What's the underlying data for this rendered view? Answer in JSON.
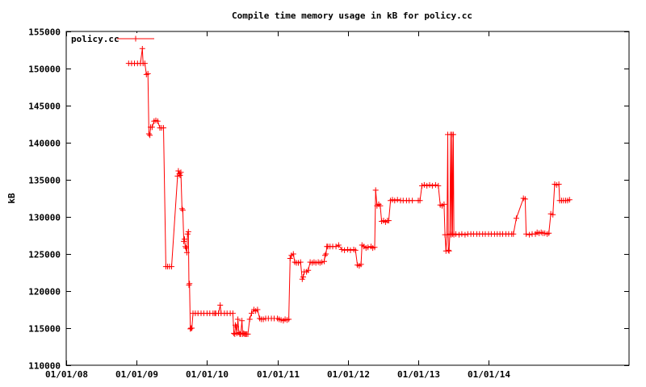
{
  "chart_data": {
    "type": "line",
    "title": "Compile time memory usage in kB for policy.cc",
    "xlabel": "",
    "ylabel": "kB",
    "x_is_date": true,
    "xlim": [
      "2008-01-01",
      "2015-12-31"
    ],
    "ylim": [
      110000,
      155000
    ],
    "yticks": [
      110000,
      115000,
      120000,
      125000,
      130000,
      135000,
      140000,
      145000,
      150000,
      155000
    ],
    "xticks": [
      {
        "date": "2008-01-01",
        "label": "01/01/08"
      },
      {
        "date": "2009-01-01",
        "label": "01/01/09"
      },
      {
        "date": "2010-01-01",
        "label": "01/01/10"
      },
      {
        "date": "2011-01-01",
        "label": "01/01/11"
      },
      {
        "date": "2012-01-01",
        "label": "01/01/12"
      },
      {
        "date": "2013-01-01",
        "label": "01/01/13"
      },
      {
        "date": "2014-01-01",
        "label": "01/01/14"
      }
    ],
    "grid": false,
    "legend_position": "top-left",
    "series": [
      {
        "name": "policy.cc",
        "color": "#ff0000",
        "marker": "plus",
        "points": [
          [
            "2008-11-20",
            150700
          ],
          [
            "2008-12-05",
            150700
          ],
          [
            "2008-12-20",
            150700
          ],
          [
            "2009-01-05",
            150700
          ],
          [
            "2009-01-20",
            150700
          ],
          [
            "2009-01-30",
            152700
          ],
          [
            "2009-02-03",
            150700
          ],
          [
            "2009-02-12",
            150700
          ],
          [
            "2009-02-20",
            149200
          ],
          [
            "2009-02-28",
            149300
          ],
          [
            "2009-03-05",
            141200
          ],
          [
            "2009-03-10",
            141000
          ],
          [
            "2009-03-14",
            142100
          ],
          [
            "2009-03-22",
            142100
          ],
          [
            "2009-04-01",
            142900
          ],
          [
            "2009-04-10",
            143000
          ],
          [
            "2009-04-20",
            142900
          ],
          [
            "2009-05-01",
            142000
          ],
          [
            "2009-05-10",
            142000
          ],
          [
            "2009-05-20",
            142000
          ],
          [
            "2009-06-01",
            123300
          ],
          [
            "2009-06-10",
            123300
          ],
          [
            "2009-06-20",
            123300
          ],
          [
            "2009-07-01",
            123300
          ],
          [
            "2009-08-01",
            135500
          ],
          [
            "2009-08-05",
            136200
          ],
          [
            "2009-08-10",
            135800
          ],
          [
            "2009-08-14",
            135600
          ],
          [
            "2009-08-18",
            136000
          ],
          [
            "2009-08-24",
            131100
          ],
          [
            "2009-08-28",
            130900
          ],
          [
            "2009-09-02",
            126700
          ],
          [
            "2009-09-06",
            127000
          ],
          [
            "2009-09-10",
            126000
          ],
          [
            "2009-09-14",
            125800
          ],
          [
            "2009-09-18",
            125200
          ],
          [
            "2009-09-22",
            127700
          ],
          [
            "2009-09-26",
            128000
          ],
          [
            "2009-09-29",
            120800
          ],
          [
            "2009-10-02",
            121000
          ],
          [
            "2009-10-06",
            114900
          ],
          [
            "2009-10-10",
            115000
          ],
          [
            "2009-10-14",
            115000
          ],
          [
            "2009-10-20",
            117000
          ],
          [
            "2009-11-01",
            117000
          ],
          [
            "2009-11-15",
            117000
          ],
          [
            "2009-12-01",
            117000
          ],
          [
            "2009-12-15",
            117000
          ],
          [
            "2010-01-01",
            117000
          ],
          [
            "2010-01-15",
            117000
          ],
          [
            "2010-02-01",
            117000
          ],
          [
            "2010-02-10",
            117000
          ],
          [
            "2010-02-15",
            117000
          ],
          [
            "2010-03-01",
            117000
          ],
          [
            "2010-03-10",
            118100
          ],
          [
            "2010-03-15",
            117000
          ],
          [
            "2010-04-01",
            117000
          ],
          [
            "2010-04-15",
            117000
          ],
          [
            "2010-05-01",
            117000
          ],
          [
            "2010-05-15",
            117000
          ],
          [
            "2010-05-20",
            114300
          ],
          [
            "2010-05-25",
            114200
          ],
          [
            "2010-05-28",
            115400
          ],
          [
            "2010-06-01",
            115200
          ],
          [
            "2010-06-05",
            114300
          ],
          [
            "2010-06-10",
            116200
          ],
          [
            "2010-06-15",
            114400
          ],
          [
            "2010-06-20",
            114200
          ],
          [
            "2010-06-25",
            114200
          ],
          [
            "2010-07-01",
            116000
          ],
          [
            "2010-07-05",
            114200
          ],
          [
            "2010-07-10",
            114300
          ],
          [
            "2010-07-15",
            114200
          ],
          [
            "2010-07-20",
            114200
          ],
          [
            "2010-07-25",
            114200
          ],
          [
            "2010-08-01",
            114200
          ],
          [
            "2010-08-10",
            116200
          ],
          [
            "2010-08-20",
            117000
          ],
          [
            "2010-09-01",
            117500
          ],
          [
            "2010-09-10",
            117300
          ],
          [
            "2010-09-20",
            117500
          ],
          [
            "2010-10-01",
            116300
          ],
          [
            "2010-10-10",
            116200
          ],
          [
            "2010-10-20",
            116200
          ],
          [
            "2010-11-01",
            116300
          ],
          [
            "2010-11-15",
            116300
          ],
          [
            "2010-12-01",
            116300
          ],
          [
            "2010-12-15",
            116300
          ],
          [
            "2011-01-01",
            116300
          ],
          [
            "2011-01-10",
            116200
          ],
          [
            "2011-01-20",
            116100
          ],
          [
            "2011-02-01",
            116000
          ],
          [
            "2011-02-10",
            116200
          ],
          [
            "2011-02-20",
            116100
          ],
          [
            "2011-03-01",
            116200
          ],
          [
            "2011-03-08",
            124400
          ],
          [
            "2011-03-15",
            124800
          ],
          [
            "2011-03-25",
            125000
          ],
          [
            "2011-04-01",
            123900
          ],
          [
            "2011-04-10",
            123800
          ],
          [
            "2011-04-20",
            123800
          ],
          [
            "2011-05-01",
            123900
          ],
          [
            "2011-05-10",
            121600
          ],
          [
            "2011-05-15",
            121900
          ],
          [
            "2011-05-20",
            122600
          ],
          [
            "2011-06-01",
            122600
          ],
          [
            "2011-06-10",
            122800
          ],
          [
            "2011-06-20",
            123900
          ],
          [
            "2011-07-01",
            123800
          ],
          [
            "2011-07-10",
            123900
          ],
          [
            "2011-07-20",
            123800
          ],
          [
            "2011-08-01",
            123900
          ],
          [
            "2011-08-10",
            123800
          ],
          [
            "2011-08-20",
            123900
          ],
          [
            "2011-09-01",
            124000
          ],
          [
            "2011-09-05",
            124800
          ],
          [
            "2011-09-10",
            125000
          ],
          [
            "2011-09-15",
            126000
          ],
          [
            "2011-09-20",
            126000
          ],
          [
            "2011-10-01",
            126000
          ],
          [
            "2011-10-15",
            126000
          ],
          [
            "2011-11-01",
            126000
          ],
          [
            "2011-11-15",
            126200
          ],
          [
            "2011-12-01",
            125600
          ],
          [
            "2011-12-15",
            125500
          ],
          [
            "2012-01-01",
            125600
          ],
          [
            "2012-01-15",
            125500
          ],
          [
            "2012-02-01",
            125600
          ],
          [
            "2012-02-10",
            125500
          ],
          [
            "2012-02-20",
            123500
          ],
          [
            "2012-03-01",
            123400
          ],
          [
            "2012-03-10",
            123600
          ],
          [
            "2012-03-15",
            126200
          ],
          [
            "2012-03-25",
            126000
          ],
          [
            "2012-04-05",
            125800
          ],
          [
            "2012-04-15",
            125900
          ],
          [
            "2012-05-01",
            126000
          ],
          [
            "2012-05-10",
            125800
          ],
          [
            "2012-05-20",
            125900
          ],
          [
            "2012-05-25",
            133600
          ],
          [
            "2012-06-01",
            131500
          ],
          [
            "2012-06-10",
            131700
          ],
          [
            "2012-06-18",
            131500
          ],
          [
            "2012-06-25",
            129400
          ],
          [
            "2012-07-05",
            129500
          ],
          [
            "2012-07-15",
            129300
          ],
          [
            "2012-07-25",
            129500
          ],
          [
            "2012-08-01",
            129500
          ],
          [
            "2012-08-10",
            132200
          ],
          [
            "2012-08-20",
            132300
          ],
          [
            "2012-09-01",
            132200
          ],
          [
            "2012-09-15",
            132300
          ],
          [
            "2012-10-01",
            132200
          ],
          [
            "2012-10-15",
            132200
          ],
          [
            "2012-11-01",
            132200
          ],
          [
            "2012-11-15",
            132200
          ],
          [
            "2012-12-01",
            132200
          ],
          [
            "2013-01-01",
            132200
          ],
          [
            "2013-01-10",
            132200
          ],
          [
            "2013-01-20",
            134200
          ],
          [
            "2013-02-01",
            134300
          ],
          [
            "2013-02-15",
            134200
          ],
          [
            "2013-03-01",
            134300
          ],
          [
            "2013-03-15",
            134200
          ],
          [
            "2013-04-01",
            134300
          ],
          [
            "2013-04-15",
            134200
          ],
          [
            "2013-04-25",
            131600
          ],
          [
            "2013-05-05",
            131500
          ],
          [
            "2013-05-15",
            131700
          ],
          [
            "2013-05-20",
            127600
          ],
          [
            "2013-05-25",
            125400
          ],
          [
            "2013-05-30",
            127600
          ],
          [
            "2013-06-03",
            141100
          ],
          [
            "2013-06-06",
            125500
          ],
          [
            "2013-06-10",
            125400
          ],
          [
            "2013-06-14",
            127700
          ],
          [
            "2013-06-18",
            141100
          ],
          [
            "2013-06-21",
            127600
          ],
          [
            "2013-06-25",
            141100
          ],
          [
            "2013-06-28",
            127700
          ],
          [
            "2013-07-02",
            141100
          ],
          [
            "2013-07-05",
            127600
          ],
          [
            "2013-07-15",
            127700
          ],
          [
            "2013-08-01",
            127600
          ],
          [
            "2013-08-15",
            127700
          ],
          [
            "2013-09-01",
            127600
          ],
          [
            "2013-09-15",
            127700
          ],
          [
            "2013-10-01",
            127700
          ],
          [
            "2013-10-15",
            127700
          ],
          [
            "2013-11-01",
            127700
          ],
          [
            "2013-11-15",
            127700
          ],
          [
            "2013-12-01",
            127700
          ],
          [
            "2013-12-15",
            127700
          ],
          [
            "2014-01-01",
            127700
          ],
          [
            "2014-01-15",
            127700
          ],
          [
            "2014-02-01",
            127700
          ],
          [
            "2014-02-15",
            127700
          ],
          [
            "2014-03-01",
            127700
          ],
          [
            "2014-03-15",
            127700
          ],
          [
            "2014-04-01",
            127700
          ],
          [
            "2014-04-15",
            127700
          ],
          [
            "2014-05-01",
            127700
          ],
          [
            "2014-05-10",
            127700
          ],
          [
            "2014-05-25",
            129800
          ],
          [
            "2014-07-01",
            132500
          ],
          [
            "2014-07-10",
            132400
          ],
          [
            "2014-07-15",
            127700
          ],
          [
            "2014-08-01",
            127600
          ],
          [
            "2014-08-15",
            127700
          ],
          [
            "2014-09-01",
            127700
          ],
          [
            "2014-09-10",
            127900
          ],
          [
            "2014-09-20",
            127800
          ],
          [
            "2014-10-01",
            127900
          ],
          [
            "2014-10-10",
            127800
          ],
          [
            "2014-10-20",
            127800
          ],
          [
            "2014-11-01",
            127700
          ],
          [
            "2014-11-10",
            127800
          ],
          [
            "2014-11-20",
            130400
          ],
          [
            "2014-12-01",
            130300
          ],
          [
            "2014-12-10",
            134400
          ],
          [
            "2014-12-20",
            134300
          ],
          [
            "2015-01-01",
            134400
          ],
          [
            "2015-01-05",
            132200
          ],
          [
            "2015-01-15",
            132200
          ],
          [
            "2015-01-25",
            132200
          ],
          [
            "2015-02-05",
            132200
          ],
          [
            "2015-02-15",
            132200
          ],
          [
            "2015-02-25",
            132300
          ]
        ]
      }
    ]
  }
}
